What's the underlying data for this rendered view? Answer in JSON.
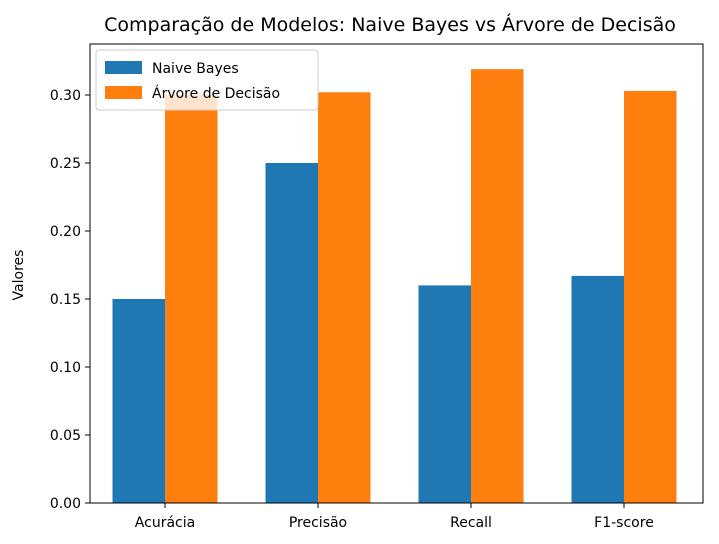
{
  "chart_data": {
    "type": "bar",
    "title": "Comparação de Modelos: Naive Bayes vs Árvore de Decisão",
    "xlabel": "",
    "ylabel": "Valores",
    "categories": [
      "Acurácia",
      "Precisão",
      "Recall",
      "F1-score"
    ],
    "series": [
      {
        "name": "Naive Bayes",
        "color": "#1f77b4",
        "values": [
          0.15,
          0.25,
          0.16,
          0.167
        ]
      },
      {
        "name": "Árvore de Decisão",
        "color": "#ff7f0e",
        "values": [
          0.3,
          0.302,
          0.319,
          0.303
        ]
      }
    ],
    "ylim": [
      0,
      0.3375
    ],
    "yticks": [
      "0.00",
      "0.05",
      "0.10",
      "0.15",
      "0.20",
      "0.25",
      "0.30"
    ],
    "legend_position": "top-left",
    "grid": false
  }
}
